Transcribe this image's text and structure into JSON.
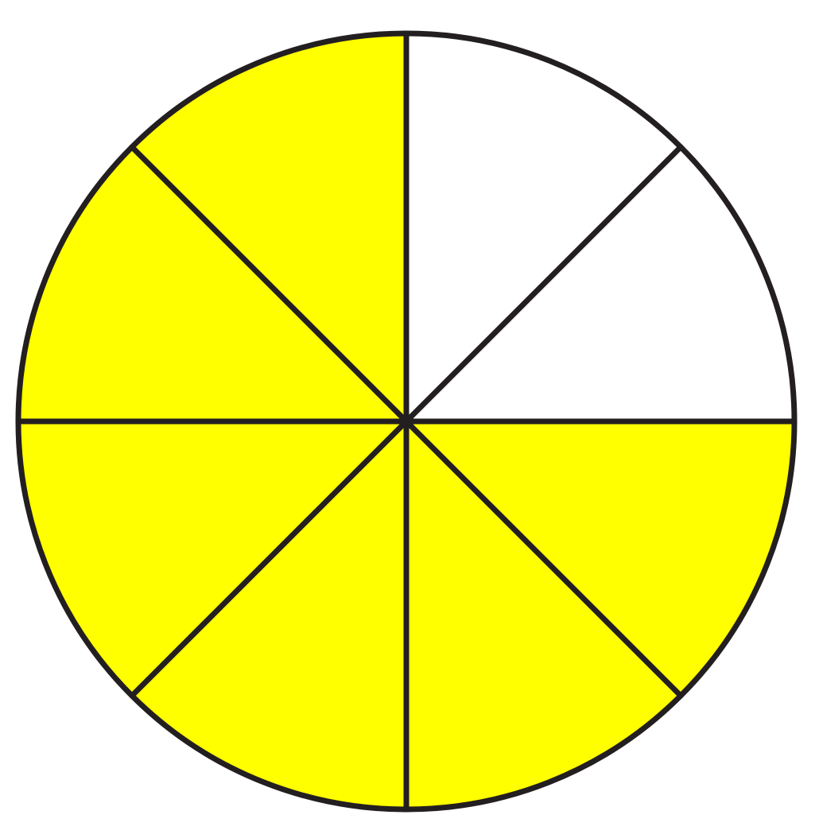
{
  "fraction_circle": {
    "total_parts": 8,
    "shaded_parts": 6,
    "start_angle_deg": -90,
    "direction": "clockwise",
    "shaded_sectors": [
      false,
      false,
      true,
      true,
      true,
      true,
      true,
      true
    ],
    "colors": {
      "shaded": "#ffff00",
      "unshaded": "#ffffff",
      "stroke": "#231f20"
    }
  }
}
